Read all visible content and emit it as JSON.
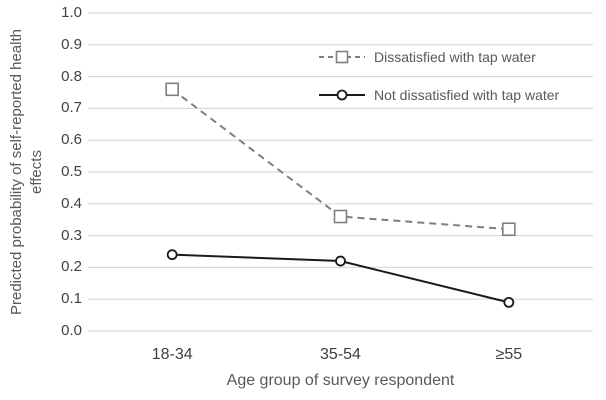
{
  "chart_data": {
    "type": "line",
    "title": "",
    "categories": [
      "18-34",
      "35-54",
      "≥55"
    ],
    "xlabel": "Age group of survey respondent",
    "ylabel": "Predicted probability of self-reported health effects",
    "ylim": [
      0.0,
      1.0
    ],
    "ytick_step": 0.1,
    "yticks": [
      "1.0",
      "0.9",
      "0.8",
      "0.7",
      "0.6",
      "0.5",
      "0.4",
      "0.3",
      "0.2",
      "0.1",
      "0.0"
    ],
    "grid": "horizontal gridlines only",
    "legend_position": "inside upper right",
    "series": [
      {
        "name": "Dissatisfied with tap water",
        "values": [
          0.76,
          0.36,
          0.32
        ],
        "line_style": "dashed",
        "marker": "square",
        "color": "#7f7f7f"
      },
      {
        "name": "Not dissatisfied with tap water",
        "values": [
          0.24,
          0.22,
          0.09
        ],
        "line_style": "solid",
        "marker": "circle",
        "color": "#1a1a1a"
      }
    ],
    "colors": {
      "background": "#ffffff",
      "gridline": "#d9d9d9",
      "tick_label": "#404040",
      "axis_title": "#595959",
      "legend_text": "#595959"
    }
  }
}
